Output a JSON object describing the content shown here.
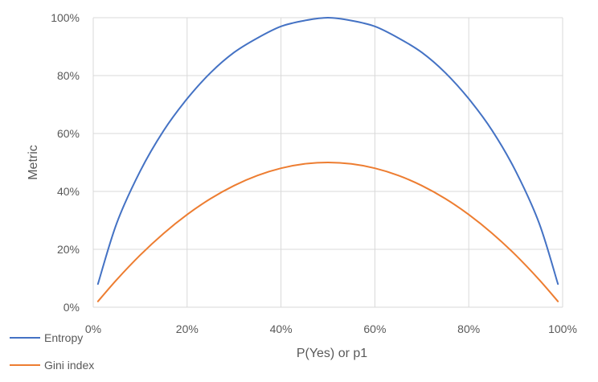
{
  "chart_data": {
    "type": "line",
    "xlabel": "P(Yes) or p1",
    "ylabel": "Metric",
    "xlim": [
      0,
      1
    ],
    "ylim": [
      0,
      1
    ],
    "x_ticks": [
      {
        "value": 0.0,
        "label": "0%"
      },
      {
        "value": 0.2,
        "label": "20%"
      },
      {
        "value": 0.4,
        "label": "40%"
      },
      {
        "value": 0.6,
        "label": "60%"
      },
      {
        "value": 0.8,
        "label": "80%"
      },
      {
        "value": 1.0,
        "label": "100%"
      }
    ],
    "y_ticks": [
      {
        "value": 0.0,
        "label": "0%"
      },
      {
        "value": 0.2,
        "label": "20%"
      },
      {
        "value": 0.4,
        "label": "40%"
      },
      {
        "value": 0.6,
        "label": "60%"
      },
      {
        "value": 0.8,
        "label": "80%"
      },
      {
        "value": 1.0,
        "label": "100%"
      }
    ],
    "grid": true,
    "legend_position": "bottom-left",
    "x": [
      0.01,
      0.05,
      0.1,
      0.15,
      0.2,
      0.25,
      0.3,
      0.35,
      0.4,
      0.45,
      0.5,
      0.55,
      0.6,
      0.65,
      0.7,
      0.75,
      0.8,
      0.85,
      0.9,
      0.95,
      0.99
    ],
    "series": [
      {
        "name": "Entropy",
        "color": "#4472C4",
        "values": [
          0.08,
          0.29,
          0.47,
          0.61,
          0.72,
          0.81,
          0.88,
          0.93,
          0.97,
          0.99,
          1.0,
          0.99,
          0.97,
          0.93,
          0.88,
          0.81,
          0.72,
          0.61,
          0.47,
          0.29,
          0.08
        ]
      },
      {
        "name": "Gini index",
        "color": "#ED7D31",
        "values": [
          0.02,
          0.095,
          0.18,
          0.255,
          0.32,
          0.375,
          0.42,
          0.455,
          0.48,
          0.495,
          0.5,
          0.495,
          0.48,
          0.455,
          0.42,
          0.375,
          0.32,
          0.255,
          0.18,
          0.095,
          0.02
        ]
      }
    ]
  }
}
